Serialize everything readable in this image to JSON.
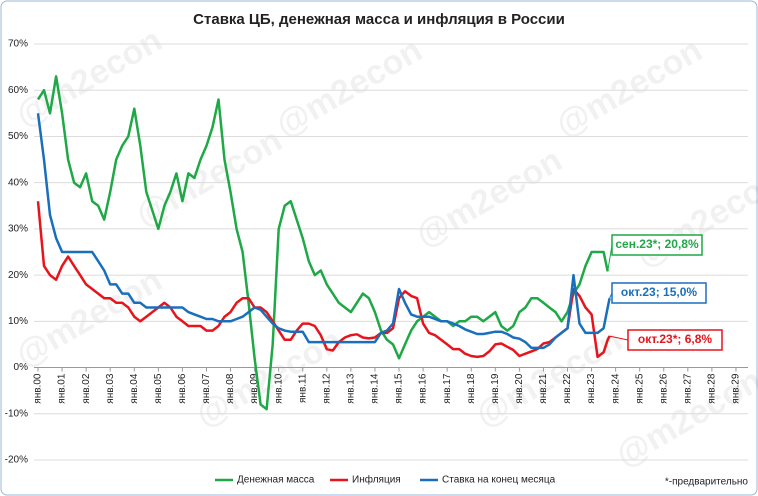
{
  "chart_data": {
    "type": "line",
    "title": "Ставка ЦБ, денежная масса и инфляция в России",
    "watermark": "@m2econ",
    "footnote": "*-предварительно",
    "x": [
      2000,
      2000.25,
      2000.5,
      2000.75,
      2001,
      2001.25,
      2001.5,
      2001.75,
      2002,
      2002.25,
      2002.5,
      2002.75,
      2003,
      2003.25,
      2003.5,
      2003.75,
      2004,
      2004.25,
      2004.5,
      2004.75,
      2005,
      2005.25,
      2005.5,
      2005.75,
      2006,
      2006.25,
      2006.5,
      2006.75,
      2007,
      2007.25,
      2007.5,
      2007.75,
      2008,
      2008.25,
      2008.5,
      2008.75,
      2009,
      2009.25,
      2009.5,
      2009.75,
      2010,
      2010.25,
      2010.5,
      2010.75,
      2011,
      2011.25,
      2011.5,
      2011.75,
      2012,
      2012.25,
      2012.5,
      2012.75,
      2013,
      2013.25,
      2013.5,
      2013.75,
      2014,
      2014.25,
      2014.5,
      2014.75,
      2015,
      2015.25,
      2015.5,
      2015.75,
      2016,
      2016.25,
      2016.5,
      2016.75,
      2017,
      2017.25,
      2017.5,
      2017.75,
      2018,
      2018.25,
      2018.5,
      2018.75,
      2019,
      2019.25,
      2019.5,
      2019.75,
      2020,
      2020.25,
      2020.5,
      2020.75,
      2021,
      2021.25,
      2021.5,
      2021.75,
      2022,
      2022.25,
      2022.5,
      2022.75,
      2023,
      2023.25,
      2023.5,
      2023.67,
      2023.75
    ],
    "series": [
      {
        "name": "Денежная масса",
        "color": "#1fa846",
        "values": [
          58,
          60,
          55,
          63,
          55,
          45,
          40,
          39,
          42,
          36,
          35,
          32,
          38,
          45,
          48,
          50,
          56,
          48,
          38,
          34,
          30,
          35,
          38,
          42,
          36,
          42,
          41,
          45,
          48,
          52,
          58,
          45,
          38,
          30,
          25,
          14,
          2,
          -8,
          -9,
          5,
          30,
          35,
          36,
          32,
          28,
          23,
          20,
          21,
          18,
          16,
          14,
          13,
          12,
          14,
          16,
          15,
          12,
          8,
          6,
          5,
          2,
          5,
          8,
          10,
          11,
          12,
          11,
          10,
          10,
          9,
          10,
          10,
          11,
          11,
          10,
          11,
          12,
          9,
          8,
          9,
          12,
          13,
          15,
          15,
          14,
          13,
          12,
          10,
          12,
          16,
          18,
          22,
          25,
          25,
          25,
          20.8,
          null
        ]
      },
      {
        "name": "Инфляция",
        "color": "#e8141b",
        "values": [
          36,
          22,
          20,
          19,
          22,
          24,
          22,
          20,
          18,
          17,
          16,
          15,
          15,
          14,
          14,
          13,
          11,
          10,
          11,
          12,
          13,
          14,
          13,
          11,
          10,
          9,
          9,
          9,
          8,
          8,
          9,
          11,
          12,
          14,
          15,
          15,
          13,
          13,
          12,
          10,
          8,
          6,
          6,
          8,
          9.5,
          9.5,
          9,
          7,
          4,
          3.7,
          5.5,
          6.5,
          7,
          7.2,
          6.5,
          6.3,
          6.5,
          7.5,
          7.5,
          8.5,
          15,
          16.5,
          15.5,
          15,
          9.5,
          7.5,
          7,
          6,
          5,
          4,
          4,
          3,
          2.5,
          2.3,
          2.5,
          3.5,
          5,
          5.2,
          4.5,
          3.8,
          2.5,
          3,
          3.5,
          4,
          5.2,
          5.5,
          6.5,
          7.5,
          8.5,
          17,
          15.5,
          13,
          11.5,
          2.3,
          3.3,
          6,
          6.8
        ]
      },
      {
        "name": "Ставка на конец месяца",
        "color": "#1a6fbd",
        "values": [
          55,
          45,
          33,
          28,
          25,
          25,
          25,
          25,
          25,
          25,
          23,
          21,
          18,
          18,
          16,
          16,
          14,
          14,
          13,
          13,
          13,
          13,
          13,
          13,
          13,
          12,
          11.5,
          11,
          10.5,
          10.5,
          10,
          10,
          10,
          10.5,
          11,
          12,
          13,
          12.5,
          11,
          9.5,
          8.5,
          8,
          7.75,
          7.75,
          7.75,
          5.5,
          5.5,
          5.5,
          5.5,
          5.5,
          5.5,
          5.5,
          5.5,
          5.5,
          5.5,
          5.5,
          5.5,
          7.5,
          8,
          9.5,
          17,
          14,
          11.5,
          11,
          11,
          11,
          10.5,
          10,
          10,
          9.5,
          9,
          8.25,
          7.75,
          7.25,
          7.25,
          7.5,
          7.75,
          7.75,
          7.25,
          6.5,
          6.25,
          5.5,
          4.25,
          4.25,
          4.25,
          5,
          6.5,
          7.5,
          8.5,
          20,
          9.5,
          7.5,
          7.5,
          7.5,
          8.5,
          13,
          15
        ]
      }
    ],
    "annotations": [
      {
        "text": "сен.23*; 20,8%",
        "color": "#1fa846"
      },
      {
        "text": "окт.23*; 6,8%",
        "color": "#e8141b"
      },
      {
        "text": "окт.23; 15,0%",
        "color": "#1a6fbd"
      }
    ],
    "xlim": [
      2000,
      2029.5
    ],
    "ylim": [
      -20,
      70
    ],
    "yticks": [
      {
        "value": -20,
        "label": "-20%"
      },
      {
        "value": -10,
        "label": "-10%"
      },
      {
        "value": 0,
        "label": "0%"
      },
      {
        "value": 10,
        "label": "10%"
      },
      {
        "value": 20,
        "label": "20%"
      },
      {
        "value": 30,
        "label": "30%"
      },
      {
        "value": 40,
        "label": "40%"
      },
      {
        "value": 50,
        "label": "50%"
      },
      {
        "value": 60,
        "label": "60%"
      },
      {
        "value": 70,
        "label": "70%"
      }
    ],
    "xticks": [
      {
        "value": 2000,
        "label": "янв.00"
      },
      {
        "value": 2001,
        "label": "янв.01"
      },
      {
        "value": 2002,
        "label": "янв.02"
      },
      {
        "value": 2003,
        "label": "янв.03"
      },
      {
        "value": 2004,
        "label": "янв.04"
      },
      {
        "value": 2005,
        "label": "янв.05"
      },
      {
        "value": 2006,
        "label": "янв.06"
      },
      {
        "value": 2007,
        "label": "янв.07"
      },
      {
        "value": 2008,
        "label": "янв.08"
      },
      {
        "value": 2009,
        "label": "янв.09"
      },
      {
        "value": 2010,
        "label": "янв.10"
      },
      {
        "value": 2011,
        "label": "янв.11"
      },
      {
        "value": 2012,
        "label": "янв.12"
      },
      {
        "value": 2013,
        "label": "янв.13"
      },
      {
        "value": 2014,
        "label": "янв.14"
      },
      {
        "value": 2015,
        "label": "янв.15"
      },
      {
        "value": 2016,
        "label": "янв.16"
      },
      {
        "value": 2017,
        "label": "янв.17"
      },
      {
        "value": 2018,
        "label": "янв.18"
      },
      {
        "value": 2019,
        "label": "янв.19"
      },
      {
        "value": 2020,
        "label": "янв.20"
      },
      {
        "value": 2021,
        "label": "янв.21"
      },
      {
        "value": 2022,
        "label": "янв.22"
      },
      {
        "value": 2023,
        "label": "янв.23"
      },
      {
        "value": 2024,
        "label": "янв.24"
      },
      {
        "value": 2025,
        "label": "янв.25"
      },
      {
        "value": 2026,
        "label": "янв.26"
      },
      {
        "value": 2027,
        "label": "янв.27"
      },
      {
        "value": 2028,
        "label": "янв.28"
      },
      {
        "value": 2029,
        "label": "янв.29"
      }
    ],
    "grid": true,
    "legend": "bottom"
  }
}
